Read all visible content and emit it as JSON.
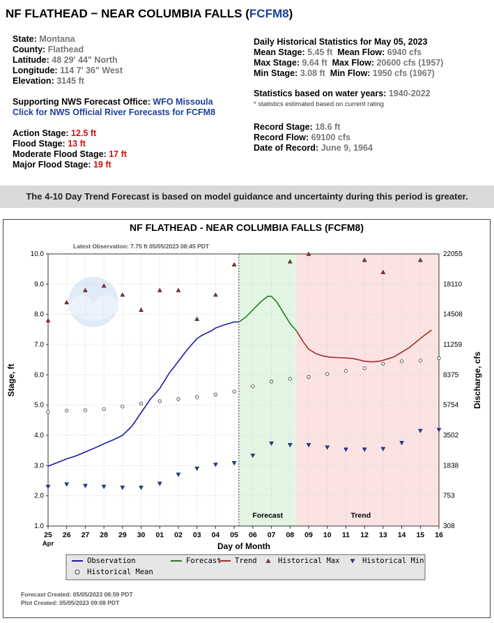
{
  "header": {
    "title_prefix": "NF FLATHEAD − NEAR COLUMBIA FALLS (",
    "title_code": "FCFM8",
    "title_suffix": ")"
  },
  "location": {
    "state_label": "State:",
    "state": "Montana",
    "county_label": "County:",
    "county": "Flathead",
    "latitude_label": "Latitude:",
    "latitude": "48 29' 44\" North",
    "longitude_label": "Longitude:",
    "longitude": "114 7' 36\" West",
    "elevation_label": "Elevation:",
    "elevation": "3145 ft"
  },
  "support": {
    "office_label": "Supporting NWS Forecast Office:",
    "office_link": "WFO Missoula",
    "forecast_link": "Click for NWS Official River Forecasts for FCFM8"
  },
  "flood_stages": [
    {
      "label": "Action Stage:",
      "value": "12.5 ft"
    },
    {
      "label": "Flood Stage:",
      "value": "13 ft"
    },
    {
      "label": "Moderate Flood Stage:",
      "value": "17 ft"
    },
    {
      "label": "Major Flood Stage:",
      "value": "19 ft"
    }
  ],
  "stats": {
    "heading": "Daily Historical Statistics for May 05, 2023",
    "mean_stage_label": "Mean Stage:",
    "mean_stage": "5.45 ft",
    "mean_flow_label": "Mean Flow:",
    "mean_flow": "6940 cfs",
    "max_stage_label": "Max Stage:",
    "max_stage": "9.64 ft",
    "max_flow_label": "Max Flow:",
    "max_flow": "20600 cfs (1957)",
    "min_stage_label": "Min Stage:",
    "min_stage": "3.08 ft",
    "min_flow_label": "Min Flow:",
    "min_flow": "1950 cfs (1967)",
    "years_label": "Statistics based on water years:",
    "years": "1940-2022",
    "note": "* statistics estimated based on current rating",
    "record_stage_label": "Record Stage:",
    "record_stage": "18.6 ft",
    "record_flow_label": "Record Flow:",
    "record_flow": "69100 cfs",
    "record_date_label": "Date of Record:",
    "record_date": "June 9, 1964"
  },
  "banner": "The 4-10 Day Trend Forecast is based on model guidance and uncertainty during this period is greater.",
  "chart_data": {
    "type": "line",
    "title": "NF FLATHEAD - NEAR COLUMBIA FALLS  (FCFM8)",
    "latest_observation": "Latest Observation: 7.75 ft 05/05/2023 08:45 PDT",
    "xlabel": "Day of Month",
    "ylabel": "Stage, ft",
    "y2label": "Discharge, cfs",
    "x_ticks": [
      "25",
      "26",
      "27",
      "28",
      "29",
      "30",
      "01",
      "02",
      "03",
      "04",
      "05",
      "06",
      "07",
      "08",
      "09",
      "10",
      "11",
      "12",
      "13",
      "14",
      "15",
      "16"
    ],
    "x_month_label": "Apr",
    "ylim": [
      1.0,
      10.0
    ],
    "y_ticks": [
      1.0,
      2.0,
      3.0,
      4.0,
      5.0,
      6.0,
      7.0,
      8.0,
      9.0,
      10.0
    ],
    "y2_tick_labels": [
      "308",
      "753",
      "1838",
      "3502",
      "5754",
      "8375",
      "11259",
      "14508",
      "18110",
      "22055"
    ],
    "region_labels": {
      "forecast": "Forecast",
      "trend": "Trend"
    },
    "regions": {
      "observed_end_day": 10.25,
      "forecast_end_day": 13.35
    },
    "grid": true,
    "series": [
      {
        "name": "Observation",
        "color": "#1a1aa8",
        "x": [
          0,
          0.5,
          1,
          1.5,
          2,
          2.5,
          3,
          3.5,
          4,
          4.5,
          5,
          5.5,
          6,
          6.5,
          7,
          7.5,
          8,
          8.25,
          8.5,
          8.75,
          9,
          9.5,
          10,
          10.25
        ],
        "y": [
          2.98,
          3.1,
          3.22,
          3.32,
          3.45,
          3.58,
          3.72,
          3.85,
          4.0,
          4.3,
          4.75,
          5.2,
          5.55,
          6.05,
          6.45,
          6.85,
          7.2,
          7.3,
          7.38,
          7.45,
          7.55,
          7.66,
          7.75,
          7.75
        ]
      },
      {
        "name": "Forecast",
        "color": "#207a20",
        "x": [
          10.25,
          10.6,
          11,
          11.4,
          11.8,
          12,
          12.3,
          12.7,
          13,
          13.35
        ],
        "y": [
          7.75,
          7.9,
          8.15,
          8.4,
          8.6,
          8.6,
          8.4,
          8.0,
          7.7,
          7.45
        ]
      },
      {
        "name": "Trend",
        "color": "#a32a2a",
        "x": [
          13.35,
          13.7,
          14,
          14.4,
          14.8,
          15.2,
          15.6,
          16,
          16.4,
          16.8,
          17,
          17.4,
          17.8,
          18.2,
          18.6,
          19,
          19.4,
          19.8,
          20.2,
          20.6
        ],
        "y": [
          7.45,
          7.1,
          6.85,
          6.7,
          6.62,
          6.58,
          6.57,
          6.56,
          6.54,
          6.48,
          6.45,
          6.43,
          6.45,
          6.52,
          6.6,
          6.75,
          6.9,
          7.1,
          7.3,
          7.48
        ]
      }
    ],
    "historical_max": {
      "name": "Historical Max",
      "color": "#a02828",
      "x": [
        0,
        1,
        2,
        3,
        4,
        5,
        6,
        7,
        8,
        9,
        10,
        13,
        14,
        17,
        18,
        20
      ],
      "y": [
        7.8,
        8.4,
        8.8,
        8.95,
        8.65,
        8.15,
        8.8,
        8.8,
        7.85,
        8.65,
        9.65,
        9.75,
        10.0,
        9.8,
        9.4,
        9.8
      ]
    },
    "historical_min": {
      "name": "Historical Min",
      "color": "#1a3fb0",
      "x": [
        0,
        1,
        2,
        3,
        4,
        5,
        6,
        7,
        8,
        9,
        10,
        11,
        12,
        13,
        14,
        15,
        16,
        17,
        18,
        19,
        20,
        21
      ],
      "y": [
        2.3,
        2.38,
        2.33,
        2.3,
        2.27,
        2.27,
        2.4,
        2.7,
        2.9,
        3.03,
        3.08,
        3.33,
        3.73,
        3.68,
        3.68,
        3.6,
        3.53,
        3.53,
        3.55,
        3.75,
        4.15,
        4.18
      ]
    },
    "historical_mean": {
      "name": "Historical Mean",
      "x": [
        0,
        1,
        2,
        3,
        4,
        5,
        6,
        7,
        8,
        9,
        10,
        11,
        12,
        13,
        14,
        15,
        16,
        17,
        18,
        19,
        20,
        21
      ],
      "y": [
        4.78,
        4.82,
        4.83,
        4.87,
        4.95,
        5.05,
        5.13,
        5.2,
        5.27,
        5.35,
        5.45,
        5.62,
        5.78,
        5.87,
        5.93,
        6.03,
        6.13,
        6.22,
        6.37,
        6.45,
        6.47,
        6.55
      ]
    },
    "legend": {
      "items": [
        "Observation",
        "Forecast",
        "Trend",
        "Historical Max",
        "Historical Min",
        "Historical Mean"
      ],
      "placement": "bottom"
    },
    "footer": {
      "forecast_created": "Forecast Created: 05/05/2023 08:59 PDT",
      "plot_created": "Plot Created: 05/05/2023 09:08 PDT"
    }
  }
}
